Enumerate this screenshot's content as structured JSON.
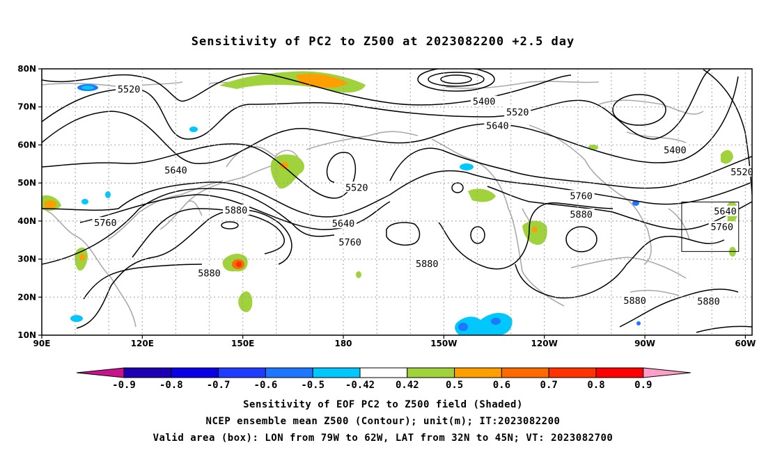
{
  "title": "Sensitivity of PC2 to Z500 at 2023082200 +2.5 day",
  "map": {
    "lon_range": [
      90,
      302
    ],
    "lat_range": [
      10,
      80
    ],
    "lat_ticks": [
      {
        "lat": 80,
        "label": "80N"
      },
      {
        "lat": 70,
        "label": "70N"
      },
      {
        "lat": 60,
        "label": "60N"
      },
      {
        "lat": 50,
        "label": "50N"
      },
      {
        "lat": 40,
        "label": "40N"
      },
      {
        "lat": 30,
        "label": "30N"
      },
      {
        "lat": 20,
        "label": "20N"
      },
      {
        "lat": 10,
        "label": "10N"
      }
    ],
    "lon_ticks": [
      {
        "lon": 90,
        "label": "90E"
      },
      {
        "lon": 120,
        "label": "120E"
      },
      {
        "lon": 150,
        "label": "150E"
      },
      {
        "lon": 180,
        "label": "180"
      },
      {
        "lon": 210,
        "label": "150W"
      },
      {
        "lon": 240,
        "label": "120W"
      },
      {
        "lon": 270,
        "label": "90W"
      },
      {
        "lon": 300,
        "label": "60W"
      }
    ],
    "contour_labels": [
      {
        "text": "5520",
        "lon": 116,
        "lat": 74.5
      },
      {
        "text": "5400",
        "lon": 222,
        "lat": 71.3
      },
      {
        "text": "5520",
        "lon": 232,
        "lat": 68.5
      },
      {
        "text": "5640",
        "lon": 226,
        "lat": 64.9
      },
      {
        "text": "5400",
        "lon": 279,
        "lat": 58.5
      },
      {
        "text": "5520",
        "lon": 299,
        "lat": 52.8
      },
      {
        "text": "5640",
        "lon": 130,
        "lat": 53.2
      },
      {
        "text": "5520",
        "lon": 184,
        "lat": 48.7
      },
      {
        "text": "5760",
        "lon": 251,
        "lat": 46.5
      },
      {
        "text": "5880",
        "lon": 148,
        "lat": 42.7
      },
      {
        "text": "5880",
        "lon": 251,
        "lat": 41.6
      },
      {
        "text": "5640",
        "lon": 294,
        "lat": 42.4
      },
      {
        "text": "5640",
        "lon": 180,
        "lat": 39.2
      },
      {
        "text": "5760",
        "lon": 109,
        "lat": 39.4
      },
      {
        "text": "5760",
        "lon": 293,
        "lat": 38.3
      },
      {
        "text": "5760",
        "lon": 182,
        "lat": 34.3
      },
      {
        "text": "5880",
        "lon": 205,
        "lat": 28.6
      },
      {
        "text": "5880",
        "lon": 140,
        "lat": 26.2
      },
      {
        "text": "5880",
        "lon": 267,
        "lat": 19.0
      },
      {
        "text": "5880",
        "lon": 289,
        "lat": 18.8
      }
    ],
    "valid_box": {
      "lon_min": 281,
      "lon_max": 298,
      "lat_min": 32,
      "lat_max": 45
    },
    "colors": {
      "coast": "#aaaaaa",
      "grid": "#999999",
      "contour": "#000000"
    }
  },
  "colorbar": {
    "labels": [
      "-0.9",
      "-0.8",
      "-0.7",
      "-0.6",
      "-0.5",
      "-0.42",
      "0.42",
      "0.5",
      "0.6",
      "0.7",
      "0.8",
      "0.9"
    ],
    "colors": [
      "#c8138c",
      "#1e00b4",
      "#0a00e6",
      "#1e3cff",
      "#1e78ff",
      "#00c8ff",
      "#ffffff",
      "#a0d23c",
      "#ff9e00",
      "#ff6a00",
      "#ff3200",
      "#ff0000",
      "#ff9ec8"
    ]
  },
  "caption": {
    "line1": "Sensitivity of EOF PC2 to Z500 field (Shaded)",
    "line2": "NCEP ensemble mean Z500 (Contour); unit(m); IT:2023082200",
    "line3": "Valid area (box): LON from 79W to 62W, LAT from 32N to 45N; VT: 2023082700"
  }
}
